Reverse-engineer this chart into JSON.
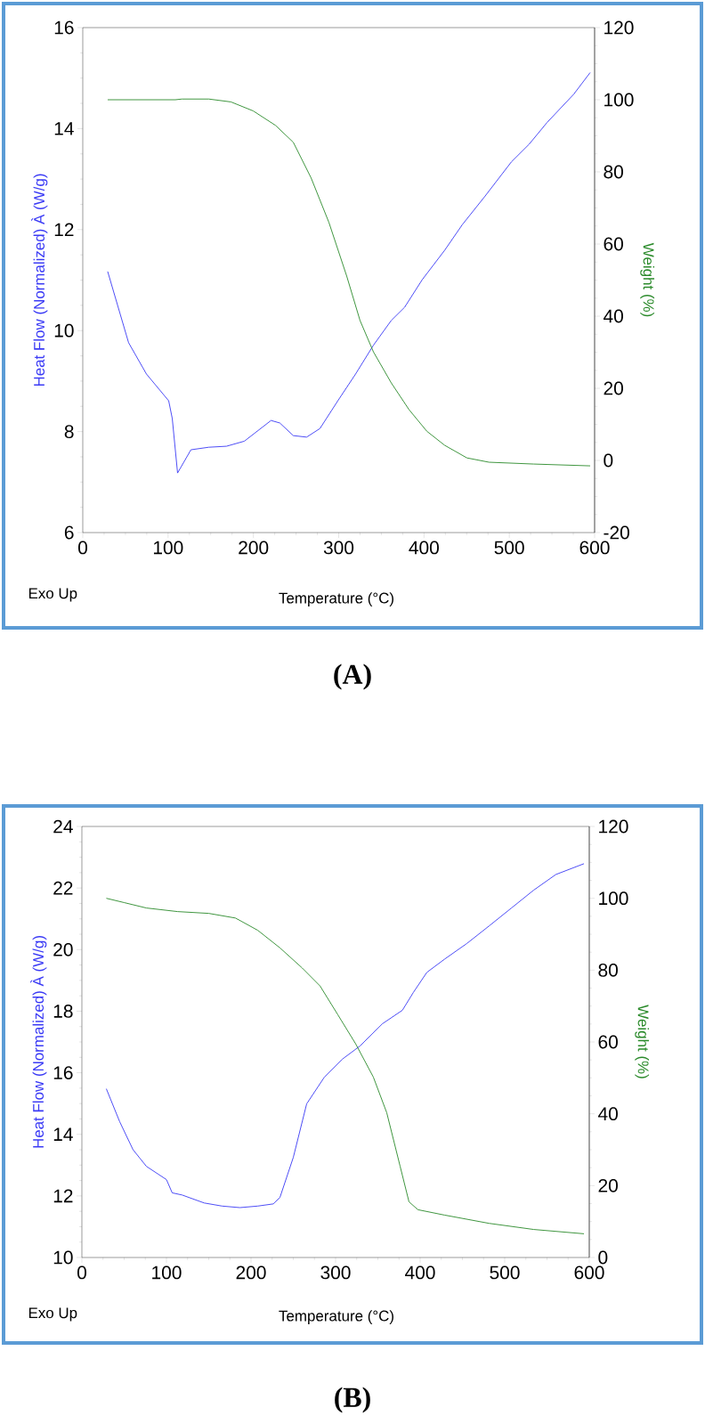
{
  "chart_data": [
    {
      "type": "line",
      "xlabel": "Temperature     (°C)",
      "ylabel": "Heat Flow (Normalized)  À  (W/g)",
      "y2label": "Weight  (%)",
      "annotations": [
        "Exo Up",
        "(A)"
      ],
      "xlim": [
        0,
        600
      ],
      "xticks": [
        0,
        100,
        200,
        300,
        400,
        500,
        600
      ],
      "ylim": [
        6,
        16
      ],
      "yticks": [
        6,
        8,
        10,
        12,
        14,
        16
      ],
      "y2lim": [
        -20,
        120
      ],
      "y2ticks": [
        -20,
        0,
        20,
        40,
        60,
        80,
        100,
        120
      ],
      "series": [
        {
          "color": "#3a3af5",
          "x": [
            29.2,
            53.7,
            74.6,
            100.7,
            104.9,
            111.1,
            126.8,
            147.7,
            168.5,
            189.4,
            220.7,
            231,
            246.8,
            262.4,
            278,
            299,
            319.8,
            340.7,
            361.6,
            377.2,
            398,
            424.2,
            445,
            471,
            502.4,
            523.2,
            544.2,
            575.5,
            594.8
          ],
          "values": [
            11.17,
            9.76,
            9.14,
            8.61,
            8.26,
            7.18,
            7.64,
            7.69,
            7.71,
            7.81,
            8.22,
            8.17,
            7.92,
            7.89,
            8.06,
            8.61,
            9.14,
            9.71,
            10.2,
            10.46,
            11.01,
            11.59,
            12.1,
            12.65,
            13.34,
            13.69,
            14.12,
            14.68,
            15.11
          ]
        },
        {
          "color": "#2a8a2a",
          "axis": "y2",
          "x": [
            29.2,
            108.5,
            116.3,
            147.7,
            173.7,
            199.8,
            225.9,
            246.8,
            267.7,
            288.5,
            309.4,
            325,
            340.7,
            361.6,
            382.4,
            403.3,
            424.2,
            450.3,
            476.3,
            528.5,
            594.8
          ],
          "values": [
            100,
            100,
            100.2,
            100.2,
            99.4,
            96.9,
            92.9,
            88.2,
            78.3,
            66,
            51.1,
            38.8,
            30.1,
            21.5,
            14.1,
            8.1,
            4.2,
            0.7,
            -0.5,
            -1,
            -1.5
          ]
        }
      ]
    },
    {
      "type": "line",
      "xlabel": "Temperature     (°C)",
      "ylabel": "Heat Flow (Normalized)  À  (W/g)",
      "y2label": "Weight  (%)",
      "annotations": [
        "Exo Up",
        "(B)"
      ],
      "xlim": [
        0,
        600
      ],
      "xticks": [
        0,
        100,
        200,
        300,
        400,
        500,
        600
      ],
      "ylim": [
        10,
        24
      ],
      "yticks": [
        10,
        12,
        14,
        16,
        18,
        20,
        22,
        24
      ],
      "y2lim": [
        0,
        120
      ],
      "y2ticks": [
        0,
        20,
        40,
        60,
        80,
        100,
        120
      ],
      "series": [
        {
          "color": "#3a3af5",
          "x": [
            28.9,
            44.7,
            60.5,
            76.3,
            100,
            106.8,
            118.4,
            144.7,
            165.8,
            186.8,
            207.9,
            226.3,
            234.2,
            250,
            265.8,
            286.8,
            307.9,
            328.9,
            355.3,
            379,
            392,
            407.9,
            428.9,
            455.3,
            481.6,
            507.9,
            534.2,
            560.5,
            593.7
          ],
          "values": [
            15.48,
            14.41,
            13.5,
            12.96,
            12.53,
            12.1,
            12.03,
            11.77,
            11.67,
            11.62,
            11.67,
            11.74,
            11.95,
            13.25,
            14.99,
            15.86,
            16.44,
            16.87,
            17.59,
            18.03,
            18.61,
            19.26,
            19.69,
            20.2,
            20.77,
            21.35,
            21.93,
            22.44,
            22.79
          ]
        },
        {
          "color": "#2a8a2a",
          "axis": "y2",
          "x": [
            28.9,
            50,
            76.3,
            113.2,
            150,
            181.6,
            207.9,
            234.2,
            260.5,
            281.6,
            302.6,
            323.7,
            344.7,
            360.5,
            376.3,
            386.8,
            397.4,
            428.9,
            481.6,
            534.2,
            593.7
          ],
          "values": [
            100,
            98.8,
            97.3,
            96.3,
            95.8,
            94.5,
            91.1,
            86.2,
            80.6,
            75.6,
            67.6,
            59.5,
            50.2,
            40.3,
            25.4,
            15.5,
            13.3,
            11.8,
            9.5,
            7.8,
            6.6
          ]
        }
      ]
    }
  ]
}
